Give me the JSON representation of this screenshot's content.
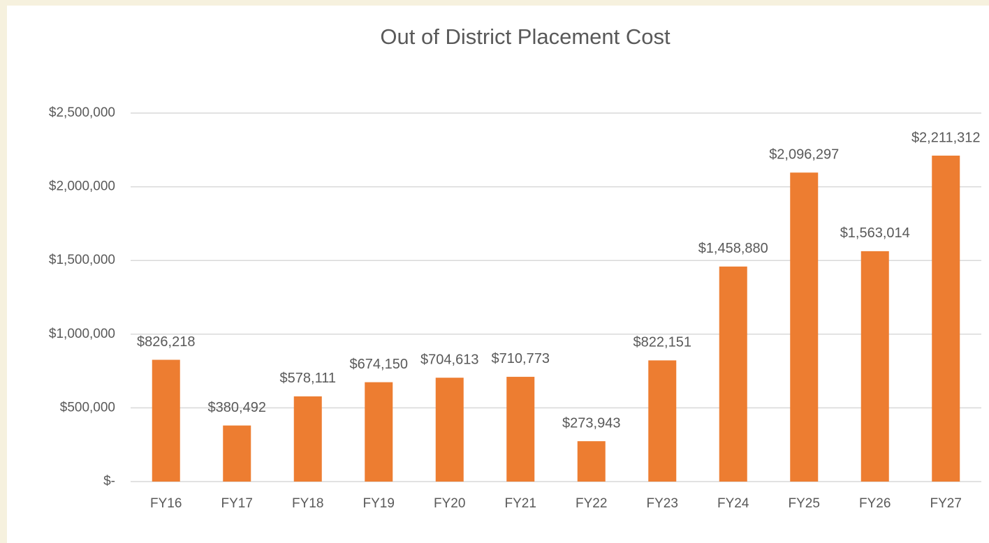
{
  "chart_data": {
    "type": "bar",
    "title": "Out of District Placement Cost",
    "categories": [
      "FY16",
      "FY17",
      "FY18",
      "FY19",
      "FY20",
      "FY21",
      "FY22",
      "FY23",
      "FY24",
      "FY25",
      "FY26",
      "FY27"
    ],
    "values": [
      826218,
      380492,
      578111,
      674150,
      704613,
      710773,
      273943,
      822151,
      1458880,
      2096297,
      1563014,
      2211312
    ],
    "value_labels": [
      "$826,218",
      "$380,492",
      "$578,111",
      "$674,150",
      "$704,613",
      "$710,773",
      "$273,943",
      "$822,151",
      "$1,458,880",
      "$2,096,297",
      "$1,563,014",
      "$2,211,312"
    ],
    "color": "#ed7d31",
    "ylim": [
      0,
      2500000
    ],
    "yticks": [
      {
        "value": 0,
        "label": "$-"
      },
      {
        "value": 500000,
        "label": "$500,000"
      },
      {
        "value": 1000000,
        "label": "$1,000,000"
      },
      {
        "value": 1500000,
        "label": "$1,500,000"
      },
      {
        "value": 2000000,
        "label": "$2,000,000"
      },
      {
        "value": 2500000,
        "label": "$2,500,000"
      }
    ],
    "grid": true
  }
}
